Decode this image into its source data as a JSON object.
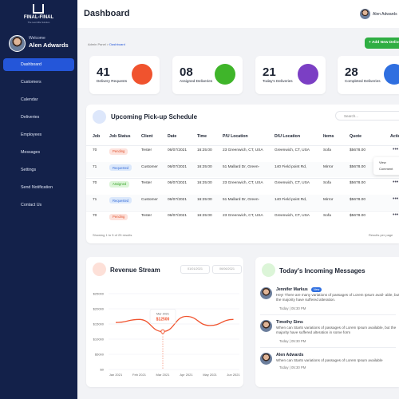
{
  "logo": {
    "name": "FINAL-FINAL",
    "tagline": "The Last Mile Solution"
  },
  "profile": {
    "greeting": "Welcome",
    "name": "Alen Adwards"
  },
  "menu": [
    "Dashboard",
    "Customers",
    "Calendar",
    "Deliveries",
    "Employees",
    "Messages",
    "Settings",
    "Send Notification",
    "Contact Us"
  ],
  "header": {
    "title": "Dashboard",
    "user": "Alen Adwards"
  },
  "breadcrumb": [
    "Admin Panel",
    "Dashboard"
  ],
  "add_button": "+ Add New Delivery",
  "stats": [
    {
      "value": "41",
      "label": "Delivery Requests"
    },
    {
      "value": "08",
      "label": "Assigned Deliveries"
    },
    {
      "value": "21",
      "label": "Today's Deliveries"
    },
    {
      "value": "28",
      "label": "Completed Deliveries"
    }
  ],
  "table": {
    "title": "Upcoming Pick-up Schedule",
    "search_placeholder": "Search...",
    "columns": [
      "Job",
      "Job Status",
      "Client",
      "Date",
      "Time",
      "P/U Location",
      "D/U Location",
      "Items",
      "Quote",
      "Action"
    ],
    "rows": [
      [
        "70",
        "Pending",
        "Tester",
        "06/07/2021",
        "16:25:00",
        "23 Greenwich, CT, USA",
        "Greenwich, CT, USA",
        "Sofa",
        "$5678.00"
      ],
      [
        "71",
        "Requested",
        "Customer",
        "06/07/2021",
        "16:25:00",
        "51 Mallard Dr, Green-",
        "140 Field point Rd,",
        "Mirror",
        "$5678.00"
      ],
      [
        "70",
        "Assigned",
        "Tester",
        "06/07/2021",
        "16:25:00",
        "23 Greenwich, CT, USA",
        "Greenwich, CT, USA",
        "Sofa",
        "$5678.00"
      ],
      [
        "71",
        "Requested",
        "Customer",
        "06/07/2021",
        "16:25:00",
        "51 Mallard Dr, Green-",
        "140 Field point Rd,",
        "Mirror",
        "$5678.00"
      ],
      [
        "70",
        "Pending",
        "Tester",
        "06/07/2021",
        "16:25:00",
        "23 Greenwich, CT, USA",
        "Greenwich, CT, USA",
        "Sofa",
        "$5678.00"
      ]
    ],
    "action_menu": [
      "View",
      "Comment"
    ],
    "footer": "Showing 1 to 5 of 25 results",
    "per_page": "Results per page"
  },
  "chart_data": {
    "type": "line",
    "title": "Revenue Stream",
    "date_range": [
      "01/01/2021",
      "06/06/2021"
    ],
    "categories": [
      "Jan 2021",
      "Feb 2021",
      "Mar 2021",
      "Apr 2021",
      "May 2021",
      "Jun 2021"
    ],
    "values": [
      15500,
      16500,
      12500,
      17500,
      14500,
      16500
    ],
    "value_labels": [
      null,
      null,
      "$12500",
      null,
      null,
      null
    ],
    "color": "#f0532e",
    "ylim": [
      0,
      25000
    ],
    "yticks": [
      {
        "value": 0,
        "label": "$0"
      },
      {
        "value": 5000,
        "label": "$5000"
      },
      {
        "value": 10000,
        "label": "$10000"
      },
      {
        "value": 15000,
        "label": "$15000"
      },
      {
        "value": 20000,
        "label": "$20000"
      },
      {
        "value": 25000,
        "label": "$25000"
      }
    ],
    "grid": true
  },
  "messages": {
    "title": "Today's Incoming Messages",
    "items": [
      {
        "name": "Jennifer Markus",
        "badge": "New",
        "text": "Hey! There are many variations of passages of Lorem Ipsum avail- able, but the majority have suffered alteration.",
        "time": "Today | 05:30 PM"
      },
      {
        "name": "Timothy Sims",
        "text": "When can Starts variations of passages of Lorem Ipsum available, but the majority have suffered alteration in some form",
        "time": "Today | 05:30 PM"
      },
      {
        "name": "Alen Adwards",
        "text": "When can Starts variations of passages of Lorem Ipsum available",
        "time": "Today | 05:30 PM"
      }
    ]
  }
}
